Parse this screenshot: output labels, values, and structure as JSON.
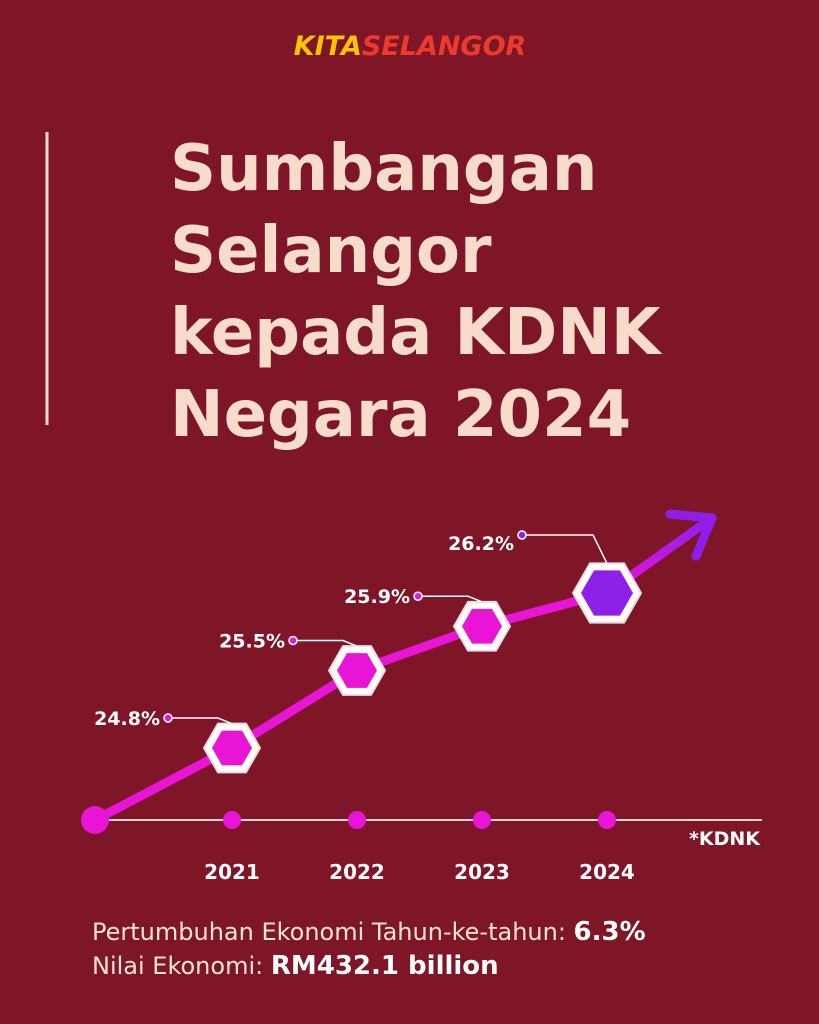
{
  "brand": [
    "KITA",
    "SELANGOR"
  ],
  "chart_data": {
    "type": "line",
    "title_lines": [
      "Sumbangan",
      "Selangor",
      "kepada KDNK",
      "Negara 2024"
    ],
    "categories": [
      "2021",
      "2022",
      "2023",
      "2024"
    ],
    "values": [
      24.8,
      25.5,
      25.9,
      26.2
    ],
    "value_labels": [
      "24.8%",
      "25.5%",
      "25.9%",
      "26.2%"
    ],
    "x_label": "*KDNK",
    "color": "#e815d6",
    "highlight_color": "#8d1fe8"
  },
  "footer": [
    {
      "label": "Pertumbuhan Ekonomi Tahun-ke-tahun:",
      "value": "6.3%"
    },
    {
      "label": "Nilai Ekonomi:",
      "value": "RM432.1 billion"
    }
  ]
}
